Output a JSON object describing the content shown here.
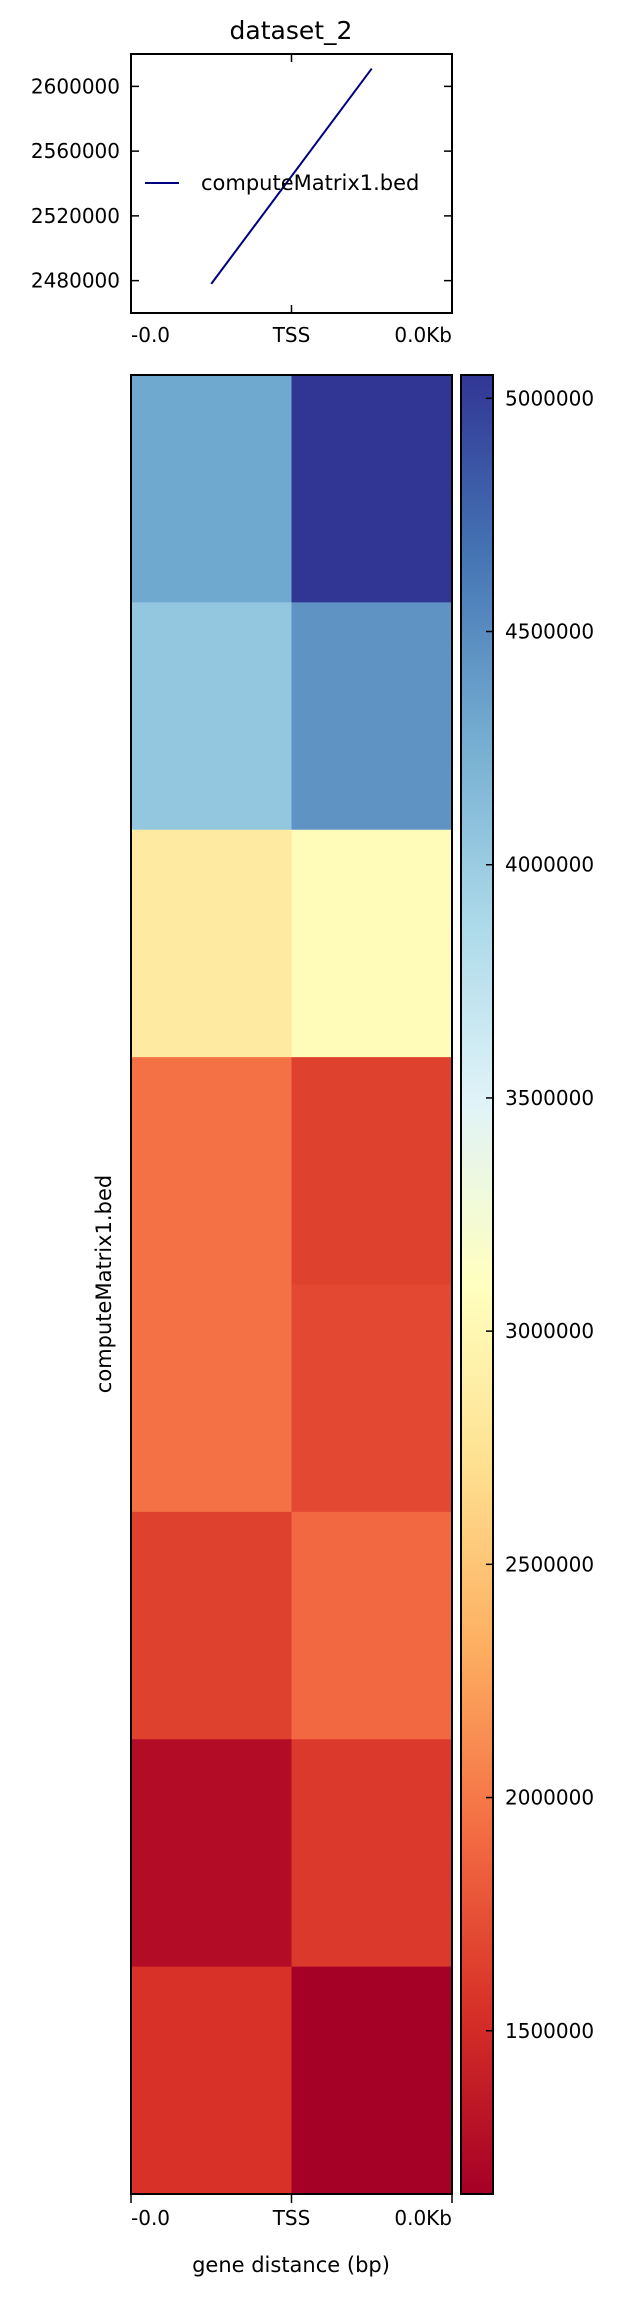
{
  "chart_data": [
    {
      "type": "line",
      "title": "dataset_2",
      "xlabel": "",
      "ylabel": "",
      "x_tick_labels": [
        "-0.0",
        "TSS",
        "0.0Kb"
      ],
      "y_ticks": [
        2480000,
        2520000,
        2560000,
        2600000
      ],
      "y_tick_labels": [
        "2480000",
        "2520000",
        "2560000",
        "2600000"
      ],
      "ylim": [
        2460000,
        2620000
      ],
      "xlim": [
        0,
        2
      ],
      "legend": {
        "position": "center-left",
        "entries": [
          "computeMatrix1.bed"
        ]
      },
      "series": [
        {
          "name": "computeMatrix1.bed",
          "x": [
            0.5,
            1.5
          ],
          "y": [
            2478000,
            2611000
          ],
          "color": "#000080"
        }
      ]
    },
    {
      "type": "heatmap",
      "xlabel": "gene distance (bp)",
      "ylabel": "computeMatrix1.bed",
      "x_tick_labels": [
        "-0.0",
        "TSS",
        "0.0Kb"
      ],
      "colormap": "RdYlBu",
      "vmin": 1150000,
      "vmax": 5050000,
      "values": [
        [
          4300000,
          5050000
        ],
        [
          4050000,
          4450000
        ],
        [
          2850000,
          3050000
        ],
        [
          1950000,
          1650000
        ],
        [
          1950000,
          1700000
        ],
        [
          1650000,
          1900000
        ],
        [
          1250000,
          1600000
        ],
        [
          1550000,
          1150000
        ]
      ]
    },
    {
      "type": "colorbar",
      "ticks": [
        1500000,
        2000000,
        2500000,
        3000000,
        3500000,
        4000000,
        4500000,
        5000000
      ],
      "tick_labels": [
        "1500000",
        "2000000",
        "2500000",
        "3000000",
        "3500000",
        "4000000",
        "4500000",
        "5000000"
      ],
      "range": [
        1150000,
        5050000
      ]
    }
  ]
}
